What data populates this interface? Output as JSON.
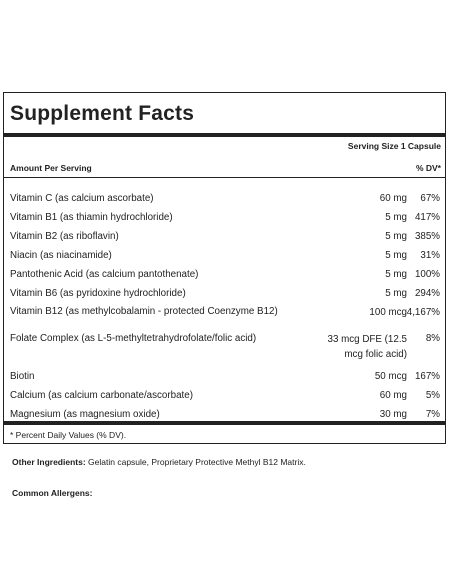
{
  "title": "Supplement Facts",
  "serving_size": "Serving Size 1 Capsule",
  "header_left": "Amount Per Serving",
  "header_right": "% DV*",
  "nutrients": [
    {
      "name": "Vitamin C (as calcium ascorbate)",
      "amount": "60 mg",
      "dv": "67%"
    },
    {
      "name": "Vitamin B1 (as thiamin hydrochloride)",
      "amount": "5 mg",
      "dv": "417%"
    },
    {
      "name": "Vitamin B2 (as riboflavin)",
      "amount": "5 mg",
      "dv": "385%"
    },
    {
      "name": "Niacin (as niacinamide)",
      "amount": "5 mg",
      "dv": "31%"
    },
    {
      "name": "Pantothenic Acid (as calcium pantothenate)",
      "amount": "5 mg",
      "dv": "100%"
    },
    {
      "name": "Vitamin B6 (as pyridoxine hydrochloride)",
      "amount": "5 mg",
      "dv": "294%"
    },
    {
      "name": "Vitamin B12 (as methylcobalamin - protected Coenzyme B12)",
      "amount": "100 mcg",
      "dv": "4,167%"
    },
    {
      "name": "Folate Complex (as L-5-methyltetrahydrofolate/folic acid)",
      "amount": "33 mcg DFE (12.5 mcg folic acid)",
      "dv": "8%"
    },
    {
      "name": "Biotin",
      "amount": "50 mcg",
      "dv": "167%"
    },
    {
      "name": "Calcium (as calcium carbonate/ascorbate)",
      "amount": "60 mg",
      "dv": "5%"
    },
    {
      "name": "Magnesium (as magnesium oxide)",
      "amount": "30 mg",
      "dv": "7%"
    }
  ],
  "footnote": "* Percent Daily Values (% DV).",
  "other_ingredients_label": "Other Ingredients:",
  "other_ingredients_text": " Gelatin capsule, Proprietary Protective Methyl B12 Matrix.",
  "common_allergens_label": "Common Allergens:"
}
